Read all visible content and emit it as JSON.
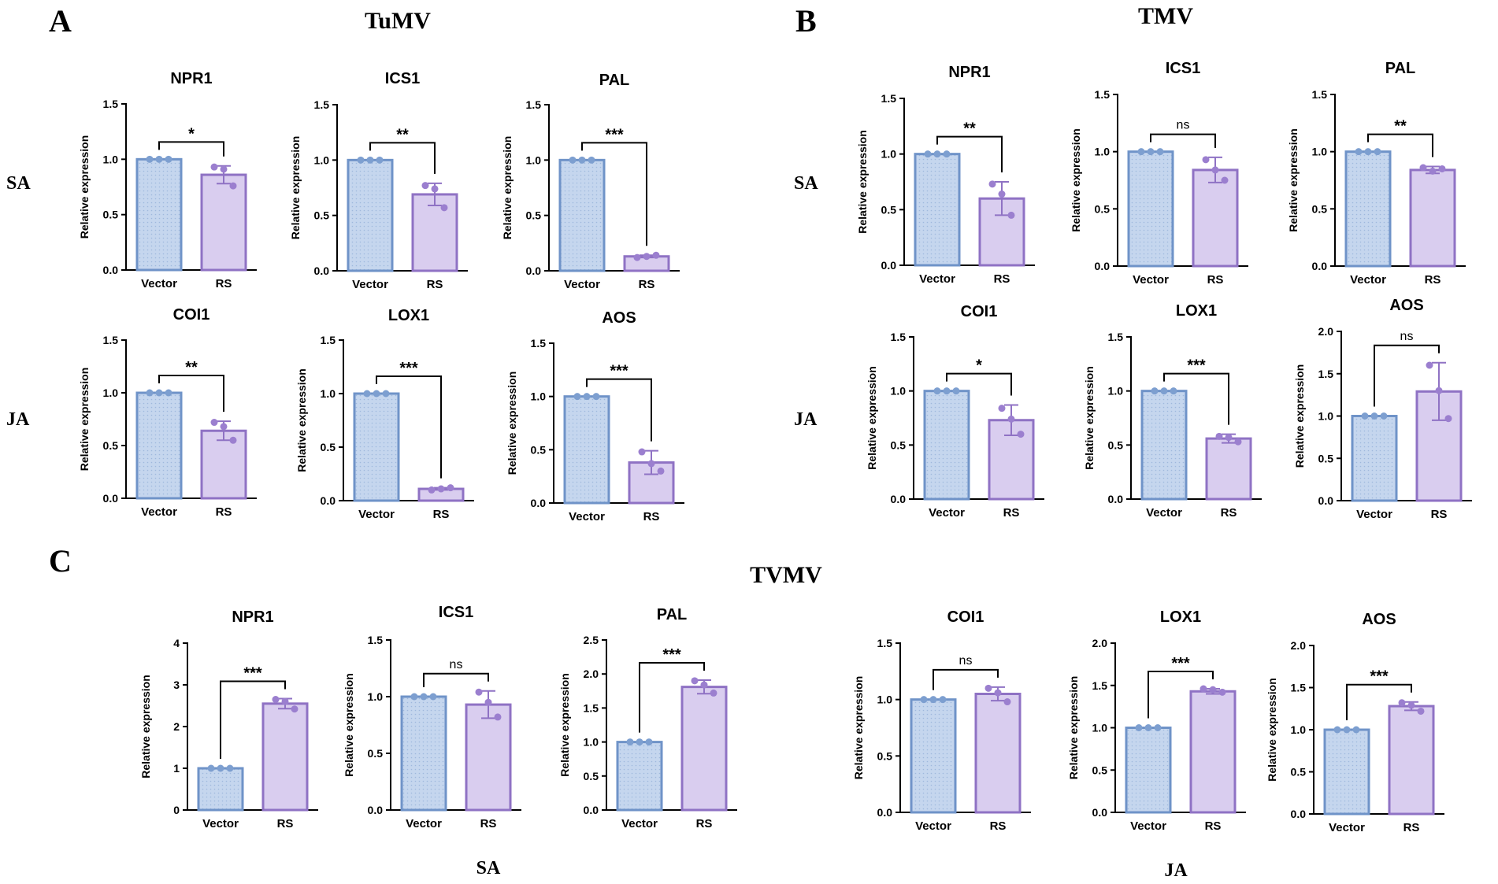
{
  "figure": {
    "panel_letters": [
      "A",
      "B",
      "C"
    ],
    "virus_titles": [
      "TuMV",
      "TMV",
      "TVMV"
    ],
    "row_labels": [
      "SA",
      "JA",
      "SA",
      "JA",
      "SA",
      "JA"
    ],
    "colors": {
      "vector_fill": "#c5d6ee",
      "vector_stroke": "#6f93c8",
      "vector_dot": "#7d9fd0",
      "rs_fill": "#d9cdef",
      "rs_stroke": "#8f72c4",
      "rs_dot": "#9b7fcf"
    }
  },
  "chart_data": [
    {
      "id": "A-NPR1",
      "panel": "A",
      "virus": "TuMV",
      "pathway": "SA",
      "type": "bar",
      "title": "NPR1",
      "ylabel": "Relative expression",
      "categories": [
        "Vector",
        "RS"
      ],
      "ylim": [
        0,
        1.5
      ],
      "yticks": [
        0,
        0.5,
        1,
        1.5
      ],
      "tick_labels": [
        "0.0",
        "0.5",
        "1.0",
        "1.5"
      ],
      "values": [
        1.0,
        0.86
      ],
      "errors": [
        0.0,
        0.08
      ],
      "points": [
        [
          1.0,
          1.0,
          1.0
        ],
        [
          0.93,
          0.91,
          0.76
        ]
      ],
      "significance": "*"
    },
    {
      "id": "A-ICS1",
      "panel": "A",
      "virus": "TuMV",
      "pathway": "SA",
      "type": "bar",
      "title": "ICS1",
      "ylabel": "Relative expression",
      "categories": [
        "Vector",
        "RS"
      ],
      "ylim": [
        0,
        1.5
      ],
      "yticks": [
        0,
        0.5,
        1,
        1.5
      ],
      "tick_labels": [
        "0.0",
        "0.5",
        "1.0",
        "1.5"
      ],
      "values": [
        1.0,
        0.69
      ],
      "errors": [
        0.0,
        0.1
      ],
      "points": [
        [
          1.0,
          1.0,
          1.0
        ],
        [
          0.77,
          0.74,
          0.57
        ]
      ],
      "significance": "**"
    },
    {
      "id": "A-PAL",
      "panel": "A",
      "virus": "TuMV",
      "pathway": "SA",
      "type": "bar",
      "title": "PAL",
      "ylabel": "Relative expression",
      "categories": [
        "Vector",
        "RS"
      ],
      "ylim": [
        0,
        1.5
      ],
      "yticks": [
        0,
        0.5,
        1,
        1.5
      ],
      "tick_labels": [
        "0.0",
        "0.5",
        "1.0",
        "1.5"
      ],
      "values": [
        1.0,
        0.13
      ],
      "errors": [
        0.0,
        0.01
      ],
      "points": [
        [
          1.0,
          1.0,
          1.0
        ],
        [
          0.12,
          0.13,
          0.14
        ]
      ],
      "significance": "***"
    },
    {
      "id": "A-COI1",
      "panel": "A",
      "virus": "TuMV",
      "pathway": "JA",
      "type": "bar",
      "title": "COI1",
      "ylabel": "Relative expression",
      "categories": [
        "Vector",
        "RS"
      ],
      "ylim": [
        0,
        1.5
      ],
      "yticks": [
        0,
        0.5,
        1,
        1.5
      ],
      "tick_labels": [
        "0.0",
        "0.5",
        "1.0",
        "1.5"
      ],
      "values": [
        1.0,
        0.64
      ],
      "errors": [
        0.0,
        0.09
      ],
      "points": [
        [
          1.0,
          1.0,
          1.0
        ],
        [
          0.72,
          0.68,
          0.55
        ]
      ],
      "significance": "**"
    },
    {
      "id": "A-LOX1",
      "panel": "A",
      "virus": "TuMV",
      "pathway": "JA",
      "type": "bar",
      "title": "LOX1",
      "ylabel": "Relative expression",
      "categories": [
        "Vector",
        "RS"
      ],
      "ylim": [
        0,
        1.5
      ],
      "yticks": [
        0,
        0.5,
        1,
        1.5
      ],
      "tick_labels": [
        "0.0",
        "0.5",
        "1.0",
        "1.5"
      ],
      "values": [
        1.0,
        0.11
      ],
      "errors": [
        0.0,
        0.01
      ],
      "points": [
        [
          1.0,
          1.0,
          1.0
        ],
        [
          0.1,
          0.11,
          0.12
        ]
      ],
      "significance": "***"
    },
    {
      "id": "A-AOS",
      "panel": "A",
      "virus": "TuMV",
      "pathway": "JA",
      "type": "bar",
      "title": "AOS",
      "ylabel": "Relative expression",
      "categories": [
        "Vector",
        "RS"
      ],
      "ylim": [
        0,
        1.5
      ],
      "yticks": [
        0,
        0.5,
        1,
        1.5
      ],
      "tick_labels": [
        "0.0",
        "0.5",
        "1.0",
        "1.5"
      ],
      "values": [
        1.0,
        0.38
      ],
      "errors": [
        0.0,
        0.11
      ],
      "points": [
        [
          1.0,
          1.0,
          1.0
        ],
        [
          0.48,
          0.37,
          0.3
        ]
      ],
      "significance": "***"
    },
    {
      "id": "B-NPR1",
      "panel": "B",
      "virus": "TMV",
      "pathway": "SA",
      "type": "bar",
      "title": "NPR1",
      "ylabel": "Relative expression",
      "categories": [
        "Vector",
        "RS"
      ],
      "ylim": [
        0,
        1.5
      ],
      "yticks": [
        0,
        0.5,
        1,
        1.5
      ],
      "tick_labels": [
        "0.0",
        "0.5",
        "1.0",
        "1.5"
      ],
      "values": [
        1.0,
        0.6
      ],
      "errors": [
        0.0,
        0.15
      ],
      "points": [
        [
          1.0,
          1.0,
          1.0
        ],
        [
          0.73,
          0.64,
          0.45
        ]
      ],
      "significance": "**"
    },
    {
      "id": "B-ICS1",
      "panel": "B",
      "virus": "TMV",
      "pathway": "SA",
      "type": "bar",
      "title": "ICS1",
      "ylabel": "Relative expression",
      "categories": [
        "Vector",
        "RS"
      ],
      "ylim": [
        0,
        1.5
      ],
      "yticks": [
        0,
        0.5,
        1,
        1.5
      ],
      "tick_labels": [
        "0.0",
        "0.5",
        "1.0",
        "1.5"
      ],
      "values": [
        1.0,
        0.84
      ],
      "errors": [
        0.0,
        0.11
      ],
      "points": [
        [
          1.0,
          1.0,
          1.0
        ],
        [
          0.93,
          0.84,
          0.75
        ]
      ],
      "significance": "ns"
    },
    {
      "id": "B-PAL",
      "panel": "B",
      "virus": "TMV",
      "pathway": "SA",
      "type": "bar",
      "title": "PAL",
      "ylabel": "Relative expression",
      "categories": [
        "Vector",
        "RS"
      ],
      "ylim": [
        0,
        1.5
      ],
      "yticks": [
        0,
        0.5,
        1,
        1.5
      ],
      "tick_labels": [
        "0.0",
        "0.5",
        "1.0",
        "1.5"
      ],
      "values": [
        1.0,
        0.84
      ],
      "errors": [
        0.0,
        0.03
      ],
      "points": [
        [
          1.0,
          1.0,
          1.0
        ],
        [
          0.86,
          0.83,
          0.85
        ]
      ],
      "significance": "**"
    },
    {
      "id": "B-COI1",
      "panel": "B",
      "virus": "TMV",
      "pathway": "JA",
      "type": "bar",
      "title": "COI1",
      "ylabel": "Relative expression",
      "categories": [
        "Vector",
        "RS"
      ],
      "ylim": [
        0,
        1.5
      ],
      "yticks": [
        0,
        0.5,
        1,
        1.5
      ],
      "tick_labels": [
        "0.0",
        "0.5",
        "1.0",
        "1.5"
      ],
      "values": [
        1.0,
        0.73
      ],
      "errors": [
        0.0,
        0.14
      ],
      "points": [
        [
          1.0,
          1.0,
          1.0
        ],
        [
          0.84,
          0.74,
          0.6
        ]
      ],
      "significance": "*"
    },
    {
      "id": "B-LOX1",
      "panel": "B",
      "virus": "TMV",
      "pathway": "JA",
      "type": "bar",
      "title": "LOX1",
      "ylabel": "Relative expression",
      "categories": [
        "Vector",
        "RS"
      ],
      "ylim": [
        0,
        1.5
      ],
      "yticks": [
        0,
        0.5,
        1,
        1.5
      ],
      "tick_labels": [
        "0.0",
        "0.5",
        "1.0",
        "1.5"
      ],
      "values": [
        1.0,
        0.56
      ],
      "errors": [
        0.0,
        0.04
      ],
      "points": [
        [
          1.0,
          1.0,
          1.0
        ],
        [
          0.58,
          0.57,
          0.53
        ]
      ],
      "significance": "***"
    },
    {
      "id": "B-AOS",
      "panel": "B",
      "virus": "TMV",
      "pathway": "JA",
      "type": "bar",
      "title": "AOS",
      "ylabel": "Relative expression",
      "categories": [
        "Vector",
        "RS"
      ],
      "ylim": [
        0,
        2.0
      ],
      "yticks": [
        0,
        0.5,
        1,
        1.5,
        2
      ],
      "tick_labels": [
        "0.0",
        "0.5",
        "1.0",
        "1.5",
        "2.0"
      ],
      "values": [
        1.0,
        1.29
      ],
      "errors": [
        0.0,
        0.34
      ],
      "points": [
        [
          1.0,
          1.0,
          1.0
        ],
        [
          1.6,
          1.3,
          0.97
        ]
      ],
      "significance": "ns"
    },
    {
      "id": "C-NPR1",
      "panel": "C",
      "virus": "TVMV",
      "pathway": "SA",
      "type": "bar",
      "title": "NPR1",
      "ylabel": "Relative expression",
      "categories": [
        "Vector",
        "RS"
      ],
      "ylim": [
        0,
        4
      ],
      "yticks": [
        0,
        1,
        2,
        3,
        4
      ],
      "tick_labels": [
        "0",
        "1",
        "2",
        "3",
        "4"
      ],
      "values": [
        1.0,
        2.55
      ],
      "errors": [
        0.0,
        0.12
      ],
      "points": [
        [
          1.0,
          1.0,
          1.0
        ],
        [
          2.65,
          2.6,
          2.42
        ]
      ],
      "significance": "***"
    },
    {
      "id": "C-ICS1",
      "panel": "C",
      "virus": "TVMV",
      "pathway": "SA",
      "type": "bar",
      "title": "ICS1",
      "ylabel": "Relative expression",
      "categories": [
        "Vector",
        "RS"
      ],
      "ylim": [
        0,
        1.5
      ],
      "yticks": [
        0,
        0.5,
        1,
        1.5
      ],
      "tick_labels": [
        "0.0",
        "0.5",
        "1.0",
        "1.5"
      ],
      "values": [
        1.0,
        0.93
      ],
      "errors": [
        0.0,
        0.12
      ],
      "points": [
        [
          1.0,
          1.0,
          1.0
        ],
        [
          1.04,
          0.95,
          0.82
        ]
      ],
      "significance": "ns"
    },
    {
      "id": "C-PAL",
      "panel": "C",
      "virus": "TVMV",
      "pathway": "SA",
      "type": "bar",
      "title": "PAL",
      "ylabel": "Relative expression",
      "categories": [
        "Vector",
        "RS"
      ],
      "ylim": [
        0,
        2.5
      ],
      "yticks": [
        0,
        0.5,
        1,
        1.5,
        2,
        2.5
      ],
      "tick_labels": [
        "0.0",
        "0.5",
        "1.0",
        "1.5",
        "2.0",
        "2.5"
      ],
      "values": [
        1.0,
        1.81
      ],
      "errors": [
        0.0,
        0.1
      ],
      "points": [
        [
          1.0,
          1.0,
          1.0
        ],
        [
          1.9,
          1.84,
          1.72
        ]
      ],
      "significance": "***"
    },
    {
      "id": "C-COI1",
      "panel": "C",
      "virus": "TVMV",
      "pathway": "JA",
      "type": "bar",
      "title": "COI1",
      "ylabel": "Relative expression",
      "categories": [
        "Vector",
        "RS"
      ],
      "ylim": [
        0,
        1.5
      ],
      "yticks": [
        0,
        0.5,
        1,
        1.5
      ],
      "tick_labels": [
        "0.0",
        "0.5",
        "1.0",
        "1.5"
      ],
      "values": [
        1.0,
        1.05
      ],
      "errors": [
        0.0,
        0.06
      ],
      "points": [
        [
          1.0,
          1.0,
          1.0
        ],
        [
          1.1,
          1.06,
          0.98
        ]
      ],
      "significance": "ns"
    },
    {
      "id": "C-LOX1",
      "panel": "C",
      "virus": "TVMV",
      "pathway": "JA",
      "type": "bar",
      "title": "LOX1",
      "ylabel": "Relative expression",
      "categories": [
        "Vector",
        "RS"
      ],
      "ylim": [
        0,
        2.0
      ],
      "yticks": [
        0,
        0.5,
        1,
        1.5,
        2
      ],
      "tick_labels": [
        "0.0",
        "0.5",
        "1.0",
        "1.5",
        "2.0"
      ],
      "values": [
        1.0,
        1.43
      ],
      "errors": [
        0.0,
        0.03
      ],
      "points": [
        [
          1.0,
          1.0,
          1.0
        ],
        [
          1.46,
          1.45,
          1.42
        ]
      ],
      "significance": "***"
    },
    {
      "id": "C-AOS",
      "panel": "C",
      "virus": "TVMV",
      "pathway": "JA",
      "type": "bar",
      "title": "AOS",
      "ylabel": "Relative expression",
      "categories": [
        "Vector",
        "RS"
      ],
      "ylim": [
        0,
        2.0
      ],
      "yticks": [
        0,
        0.5,
        1,
        1.5,
        2
      ],
      "tick_labels": [
        "0.0",
        "0.5",
        "1.0",
        "1.5",
        "2.0"
      ],
      "values": [
        1.0,
        1.28
      ],
      "errors": [
        0.0,
        0.05
      ],
      "points": [
        [
          1.0,
          1.0,
          1.0
        ],
        [
          1.32,
          1.29,
          1.22
        ]
      ],
      "significance": "***"
    }
  ]
}
